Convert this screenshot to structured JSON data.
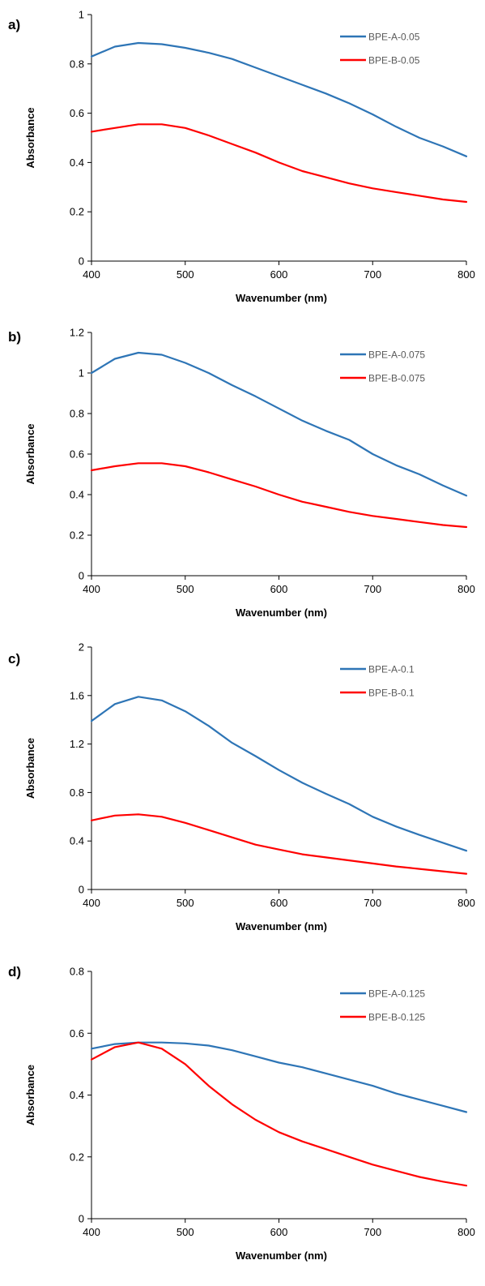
{
  "colors": {
    "series_a": "#2E75B6",
    "series_b": "#FF0000"
  },
  "chart_data": [
    {
      "type": "line",
      "panel_label": "a)",
      "xlabel": "Wavenumber (nm)",
      "ylabel": "Absorbance",
      "xlim": [
        400,
        800
      ],
      "ylim": [
        0,
        1
      ],
      "xticks": [
        400,
        500,
        600,
        700,
        800
      ],
      "xtick_labels": [
        "400",
        "500",
        "600",
        "700",
        "800"
      ],
      "yticks": [
        0,
        0.2,
        0.4,
        0.6,
        0.8,
        1
      ],
      "ytick_labels": [
        "0",
        "0.2",
        "0.4",
        "0.6",
        "0.8",
        "1"
      ],
      "legend": "top-right",
      "grid": false,
      "series": [
        {
          "name": "BPE-A-0.05",
          "color": "#2E75B6",
          "x": [
            400,
            425,
            450,
            475,
            500,
            525,
            550,
            575,
            600,
            625,
            650,
            675,
            700,
            725,
            750,
            775,
            800
          ],
          "y": [
            0.83,
            0.87,
            0.885,
            0.88,
            0.865,
            0.845,
            0.82,
            0.785,
            0.75,
            0.715,
            0.68,
            0.64,
            0.595,
            0.545,
            0.5,
            0.465,
            0.425
          ]
        },
        {
          "name": "BPE-B-0.05",
          "color": "#FF0000",
          "x": [
            400,
            425,
            450,
            475,
            500,
            525,
            550,
            575,
            600,
            625,
            650,
            675,
            700,
            725,
            750,
            775,
            800
          ],
          "y": [
            0.525,
            0.54,
            0.555,
            0.555,
            0.54,
            0.51,
            0.475,
            0.44,
            0.4,
            0.365,
            0.34,
            0.315,
            0.295,
            0.28,
            0.265,
            0.25,
            0.24
          ]
        }
      ]
    },
    {
      "type": "line",
      "panel_label": "b)",
      "xlabel": "Wavenumber (nm)",
      "ylabel": "Absorbance",
      "xlim": [
        400,
        800
      ],
      "ylim": [
        0,
        1.2
      ],
      "xticks": [
        400,
        500,
        600,
        700,
        800
      ],
      "xtick_labels": [
        "400",
        "500",
        "600",
        "700",
        "800"
      ],
      "yticks": [
        0,
        0.2,
        0.4,
        0.6,
        0.8,
        1,
        1.2
      ],
      "ytick_labels": [
        "0",
        "0.2",
        "0.4",
        "0.6",
        "0.8",
        "1",
        "1.2"
      ],
      "legend": "top-right",
      "grid": false,
      "series": [
        {
          "name": "BPE-A-0.075",
          "color": "#2E75B6",
          "x": [
            400,
            425,
            450,
            475,
            500,
            525,
            550,
            575,
            600,
            625,
            650,
            675,
            700,
            725,
            750,
            775,
            800
          ],
          "y": [
            1.0,
            1.07,
            1.1,
            1.09,
            1.05,
            1.0,
            0.94,
            0.885,
            0.825,
            0.765,
            0.715,
            0.67,
            0.6,
            0.545,
            0.5,
            0.445,
            0.395
          ]
        },
        {
          "name": "BPE-B-0.075",
          "color": "#FF0000",
          "x": [
            400,
            425,
            450,
            475,
            500,
            525,
            550,
            575,
            600,
            625,
            650,
            675,
            700,
            725,
            750,
            775,
            800
          ],
          "y": [
            0.52,
            0.54,
            0.555,
            0.555,
            0.54,
            0.51,
            0.475,
            0.44,
            0.4,
            0.365,
            0.34,
            0.315,
            0.295,
            0.28,
            0.265,
            0.25,
            0.24
          ]
        }
      ]
    },
    {
      "type": "line",
      "panel_label": "c)",
      "xlabel": "Wavenumber (nm)",
      "ylabel": "Absorbance",
      "xlim": [
        400,
        800
      ],
      "ylim": [
        0,
        2
      ],
      "xticks": [
        400,
        500,
        600,
        700,
        800
      ],
      "xtick_labels": [
        "400",
        "500",
        "600",
        "700",
        "800"
      ],
      "yticks": [
        0,
        0.4,
        0.8,
        1.2,
        1.6,
        2
      ],
      "ytick_labels": [
        "0",
        "0.4",
        "0.8",
        "1.2",
        "1.6",
        "2"
      ],
      "legend": "top-right",
      "grid": false,
      "series": [
        {
          "name": "BPE-A-0.1",
          "color": "#2E75B6",
          "x": [
            400,
            425,
            450,
            475,
            500,
            525,
            550,
            575,
            600,
            625,
            650,
            675,
            700,
            725,
            750,
            775,
            800
          ],
          "y": [
            1.39,
            1.53,
            1.59,
            1.56,
            1.47,
            1.35,
            1.21,
            1.1,
            0.985,
            0.88,
            0.79,
            0.705,
            0.6,
            0.52,
            0.45,
            0.385,
            0.32
          ]
        },
        {
          "name": "BPE-B-0.1",
          "color": "#FF0000",
          "x": [
            400,
            425,
            450,
            475,
            500,
            525,
            550,
            575,
            600,
            625,
            650,
            675,
            700,
            725,
            750,
            775,
            800
          ],
          "y": [
            0.57,
            0.61,
            0.62,
            0.6,
            0.55,
            0.49,
            0.43,
            0.37,
            0.33,
            0.29,
            0.265,
            0.24,
            0.215,
            0.19,
            0.17,
            0.15,
            0.13
          ]
        }
      ]
    },
    {
      "type": "line",
      "panel_label": "d)",
      "xlabel": "Wavenumber (nm)",
      "ylabel": "Absorbance",
      "xlim": [
        400,
        800
      ],
      "ylim": [
        0,
        0.8
      ],
      "xticks": [
        400,
        500,
        600,
        700,
        800
      ],
      "xtick_labels": [
        "400",
        "500",
        "600",
        "700",
        "800"
      ],
      "yticks": [
        0,
        0.2,
        0.4,
        0.6,
        0.8
      ],
      "ytick_labels": [
        "0",
        "0.2",
        "0.4",
        "0.6",
        "0.8"
      ],
      "legend": "top-right",
      "grid": false,
      "series": [
        {
          "name": "BPE-A-0.125",
          "color": "#2E75B6",
          "x": [
            400,
            425,
            450,
            475,
            500,
            525,
            550,
            575,
            600,
            625,
            650,
            675,
            700,
            725,
            750,
            775,
            800
          ],
          "y": [
            0.55,
            0.565,
            0.57,
            0.57,
            0.567,
            0.56,
            0.545,
            0.525,
            0.505,
            0.49,
            0.47,
            0.45,
            0.43,
            0.405,
            0.385,
            0.365,
            0.345
          ]
        },
        {
          "name": "BPE-B-0.125",
          "color": "#FF0000",
          "x": [
            400,
            425,
            450,
            475,
            500,
            525,
            550,
            575,
            600,
            625,
            650,
            675,
            700,
            725,
            750,
            775,
            800
          ],
          "y": [
            0.515,
            0.555,
            0.57,
            0.55,
            0.5,
            0.43,
            0.37,
            0.32,
            0.28,
            0.25,
            0.225,
            0.2,
            0.175,
            0.155,
            0.135,
            0.12,
            0.107
          ]
        }
      ]
    }
  ]
}
